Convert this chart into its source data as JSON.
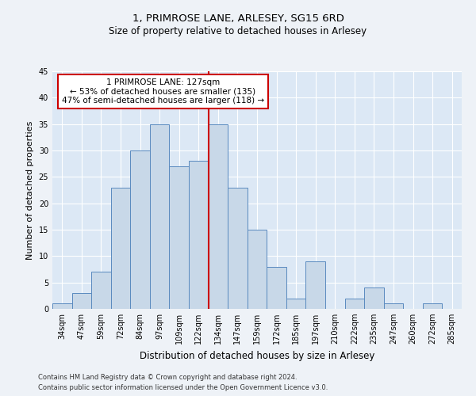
{
  "title1": "1, PRIMROSE LANE, ARLESEY, SG15 6RD",
  "title2": "Size of property relative to detached houses in Arlesey",
  "xlabel": "Distribution of detached houses by size in Arlesey",
  "ylabel": "Number of detached properties",
  "categories": [
    "34sqm",
    "47sqm",
    "59sqm",
    "72sqm",
    "84sqm",
    "97sqm",
    "109sqm",
    "122sqm",
    "134sqm",
    "147sqm",
    "159sqm",
    "172sqm",
    "185sqm",
    "197sqm",
    "210sqm",
    "222sqm",
    "235sqm",
    "247sqm",
    "260sqm",
    "272sqm",
    "285sqm"
  ],
  "bar_values": [
    1,
    3,
    7,
    23,
    30,
    35,
    27,
    28,
    35,
    23,
    15,
    8,
    2,
    9,
    0,
    2,
    4,
    1,
    0,
    1,
    0
  ],
  "bar_color": "#c8d8e8",
  "bar_edge_color": "#5a8abf",
  "ylim": [
    0,
    45
  ],
  "yticks": [
    0,
    5,
    10,
    15,
    20,
    25,
    30,
    35,
    40,
    45
  ],
  "marker_bin_index": 7,
  "annotation_line1": "1 PRIMROSE LANE: 127sqm",
  "annotation_line2": "← 53% of detached houses are smaller (135)",
  "annotation_line3": "47% of semi-detached houses are larger (118) →",
  "footer1": "Contains HM Land Registry data © Crown copyright and database right 2024.",
  "footer2": "Contains public sector information licensed under the Open Government Licence v3.0.",
  "bg_color": "#eef2f7",
  "plot_bg_color": "#dce8f5",
  "grid_color": "#ffffff",
  "annotation_box_color": "#ffffff",
  "annotation_box_edge": "#cc0000",
  "marker_line_color": "#cc0000",
  "title1_fontsize": 9.5,
  "title2_fontsize": 8.5,
  "ylabel_fontsize": 8,
  "xlabel_fontsize": 8.5,
  "tick_fontsize": 7,
  "footer_fontsize": 6,
  "annot_fontsize": 7.5
}
